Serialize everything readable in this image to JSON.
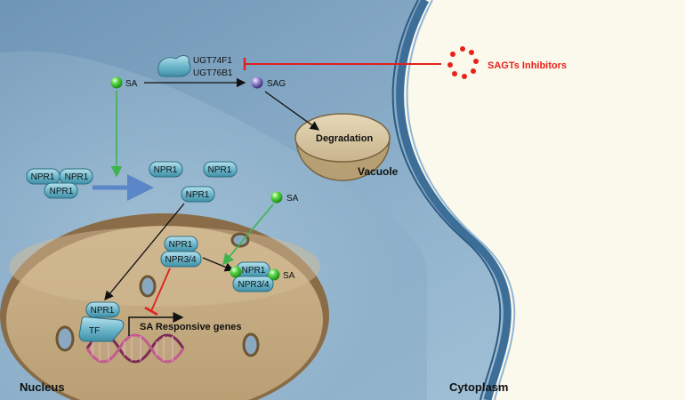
{
  "labels": {
    "ugt1": "UGT74F1",
    "ugt2": "UGT76B1",
    "sa_top": "SA",
    "sag": "SAG",
    "inhibitors": "SAGTs Inhibitors",
    "degradation": "Degradation",
    "vacuole": "Vacuole",
    "npr1": "NPR1",
    "npr34": "NPR3/4",
    "sa_mid": "SA",
    "sa_bound": "SA",
    "tf": "TF",
    "genes": "SA Responsive genes",
    "nucleus": "Nucleus",
    "cytoplasm": "Cytoplasm"
  },
  "colors": {
    "inhibitor_red": "#e8221b",
    "inhibition_line": "#e02020",
    "activation_green": "#3fb34f",
    "transition_arrow": "#5b86c8",
    "protein_fill": "#6fb8cc",
    "nucleus_fill": "#c7ad83",
    "dna_pink": "#b2417a"
  }
}
